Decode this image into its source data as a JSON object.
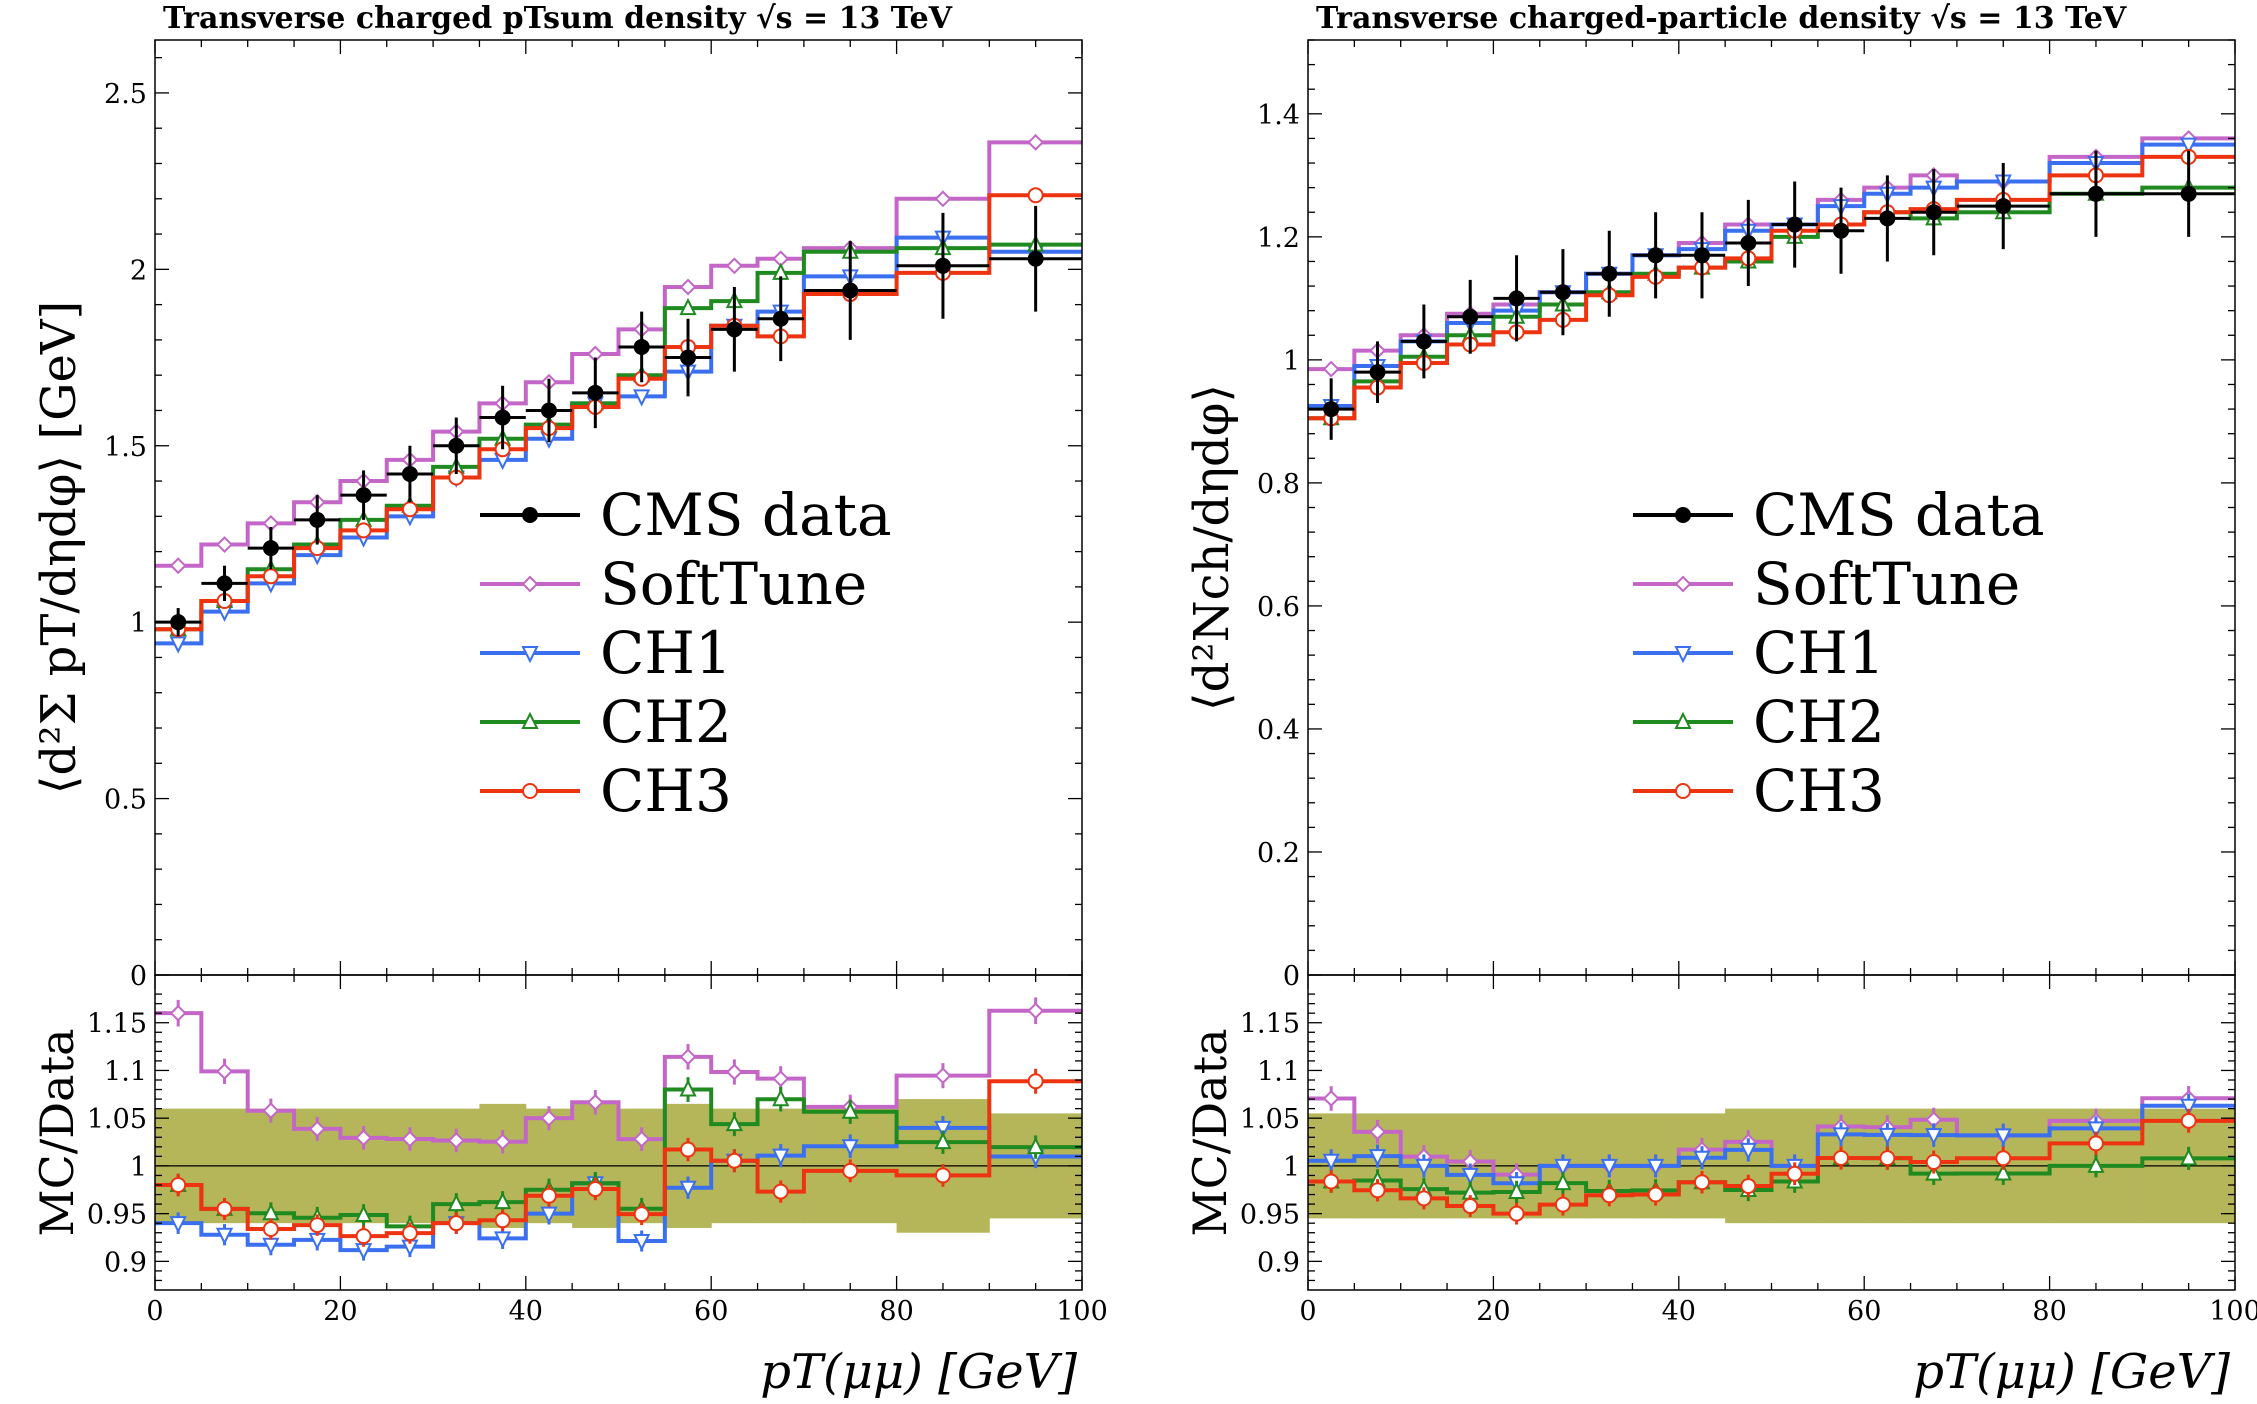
{
  "colors": {
    "data": "#000000",
    "SoftTune": "#c466c8",
    "CH1": "#3a6ff0",
    "CH2": "#1f8a1f",
    "CH3": "#ee3311",
    "band": "#b5b55a"
  },
  "legend": [
    "CMS data",
    "SoftTune",
    "CH1",
    "CH2",
    "CH3"
  ],
  "chart_data": [
    {
      "type": "line",
      "title": "Transverse charged pTsum density √s = 13 TeV",
      "ylabel": "⟨d²Σ pT/dηdφ⟩ [GeV]",
      "xlabel": "pT(μμ) [GeV]",
      "ratio_ylabel": "MC/Data",
      "xlim": [
        0,
        100
      ],
      "ylim": [
        0,
        2.65
      ],
      "ratio_ylim": [
        0.87,
        1.2
      ],
      "xticks": [
        "0",
        "20",
        "40",
        "60",
        "80",
        "100"
      ],
      "yticks": [
        "0",
        "0.5",
        "1",
        "1.5",
        "2",
        "2.5"
      ],
      "ratio_yticks": [
        "0.9",
        "0.95",
        "1",
        "1.05",
        "1.1",
        "1.15"
      ],
      "bin_edges": [
        0,
        5,
        10,
        15,
        20,
        25,
        30,
        35,
        40,
        45,
        50,
        55,
        60,
        65,
        70,
        80,
        90,
        100
      ],
      "data": {
        "name": "CMS data",
        "values": [
          1.0,
          1.11,
          1.21,
          1.29,
          1.36,
          1.42,
          1.5,
          1.58,
          1.6,
          1.65,
          1.78,
          1.75,
          1.83,
          1.86,
          1.94,
          2.01,
          2.03
        ],
        "errors": [
          0.04,
          0.05,
          0.06,
          0.07,
          0.07,
          0.08,
          0.08,
          0.09,
          0.09,
          0.1,
          0.1,
          0.11,
          0.12,
          0.12,
          0.14,
          0.15,
          0.15
        ],
        "x_err": [
          2.5,
          2.5,
          2.5,
          2.5,
          2.5,
          2.5,
          2.5,
          2.5,
          2.5,
          2.5,
          2.5,
          2.5,
          2.5,
          2.5,
          5,
          5,
          5
        ]
      },
      "series": [
        {
          "name": "SoftTune",
          "values": [
            1.16,
            1.22,
            1.28,
            1.34,
            1.4,
            1.46,
            1.54,
            1.62,
            1.68,
            1.76,
            1.83,
            1.95,
            2.01,
            2.03,
            2.06,
            2.2,
            2.36
          ]
        },
        {
          "name": "CH1",
          "values": [
            0.94,
            1.03,
            1.11,
            1.19,
            1.24,
            1.3,
            1.41,
            1.46,
            1.52,
            1.62,
            1.64,
            1.71,
            1.84,
            1.88,
            1.98,
            2.09,
            2.05
          ]
        },
        {
          "name": "CH2",
          "values": [
            0.98,
            1.06,
            1.15,
            1.22,
            1.29,
            1.33,
            1.44,
            1.52,
            1.56,
            1.62,
            1.7,
            1.89,
            1.91,
            1.99,
            2.05,
            2.06,
            2.07
          ]
        },
        {
          "name": "CH3",
          "values": [
            0.98,
            1.06,
            1.13,
            1.21,
            1.26,
            1.32,
            1.41,
            1.49,
            1.55,
            1.61,
            1.69,
            1.78,
            1.84,
            1.81,
            1.93,
            1.99,
            2.21
          ]
        }
      ],
      "ratio_band_halfwidth": [
        0.06,
        0.06,
        0.06,
        0.06,
        0.06,
        0.06,
        0.06,
        0.065,
        0.06,
        0.065,
        0.06,
        0.065,
        0.06,
        0.06,
        0.06,
        0.07,
        0.055
      ]
    },
    {
      "type": "line",
      "title": "Transverse charged-particle density √s = 13 TeV",
      "ylabel": "⟨d²Nch/dηdφ⟩",
      "xlabel": "pT(μμ) [GeV]",
      "ratio_ylabel": "MC/Data",
      "xlim": [
        0,
        100
      ],
      "ylim": [
        0,
        1.52
      ],
      "ratio_ylim": [
        0.87,
        1.2
      ],
      "xticks": [
        "0",
        "20",
        "40",
        "60",
        "80",
        "100"
      ],
      "yticks": [
        "0",
        "0.2",
        "0.4",
        "0.6",
        "0.8",
        "1",
        "1.2",
        "1.4"
      ],
      "ratio_yticks": [
        "0.9",
        "0.95",
        "1",
        "1.05",
        "1.1",
        "1.15"
      ],
      "bin_edges": [
        0,
        5,
        10,
        15,
        20,
        25,
        30,
        35,
        40,
        45,
        50,
        55,
        60,
        65,
        70,
        80,
        90,
        100
      ],
      "data": {
        "name": "CMS data",
        "values": [
          0.92,
          0.98,
          1.03,
          1.07,
          1.1,
          1.11,
          1.14,
          1.17,
          1.17,
          1.19,
          1.22,
          1.21,
          1.23,
          1.24,
          1.25,
          1.27,
          1.27
        ],
        "errors": [
          0.05,
          0.05,
          0.06,
          0.06,
          0.07,
          0.07,
          0.07,
          0.07,
          0.07,
          0.07,
          0.07,
          0.07,
          0.07,
          0.07,
          0.07,
          0.07,
          0.07
        ],
        "x_err": [
          2.5,
          2.5,
          2.5,
          2.5,
          2.5,
          2.5,
          2.5,
          2.5,
          2.5,
          2.5,
          2.5,
          2.5,
          2.5,
          2.5,
          5,
          5,
          5
        ]
      },
      "series": [
        {
          "name": "SoftTune",
          "values": [
            0.985,
            1.015,
            1.04,
            1.075,
            1.09,
            1.11,
            1.14,
            1.17,
            1.19,
            1.22,
            1.22,
            1.26,
            1.28,
            1.3,
            1.29,
            1.33,
            1.36
          ]
        },
        {
          "name": "CH1",
          "values": [
            0.925,
            0.99,
            1.03,
            1.06,
            1.08,
            1.11,
            1.14,
            1.17,
            1.18,
            1.21,
            1.22,
            1.25,
            1.27,
            1.28,
            1.29,
            1.32,
            1.35
          ]
        },
        {
          "name": "CH2",
          "values": [
            0.905,
            0.965,
            1.005,
            1.04,
            1.07,
            1.09,
            1.11,
            1.14,
            1.15,
            1.16,
            1.2,
            1.22,
            1.24,
            1.23,
            1.24,
            1.27,
            1.28
          ]
        },
        {
          "name": "CH3",
          "values": [
            0.905,
            0.955,
            0.995,
            1.025,
            1.045,
            1.065,
            1.105,
            1.135,
            1.15,
            1.165,
            1.21,
            1.22,
            1.24,
            1.245,
            1.26,
            1.3,
            1.33
          ]
        }
      ],
      "ratio_band_halfwidth": [
        0.055,
        0.055,
        0.055,
        0.055,
        0.055,
        0.055,
        0.055,
        0.055,
        0.055,
        0.06,
        0.06,
        0.06,
        0.06,
        0.06,
        0.06,
        0.06,
        0.06
      ]
    }
  ]
}
